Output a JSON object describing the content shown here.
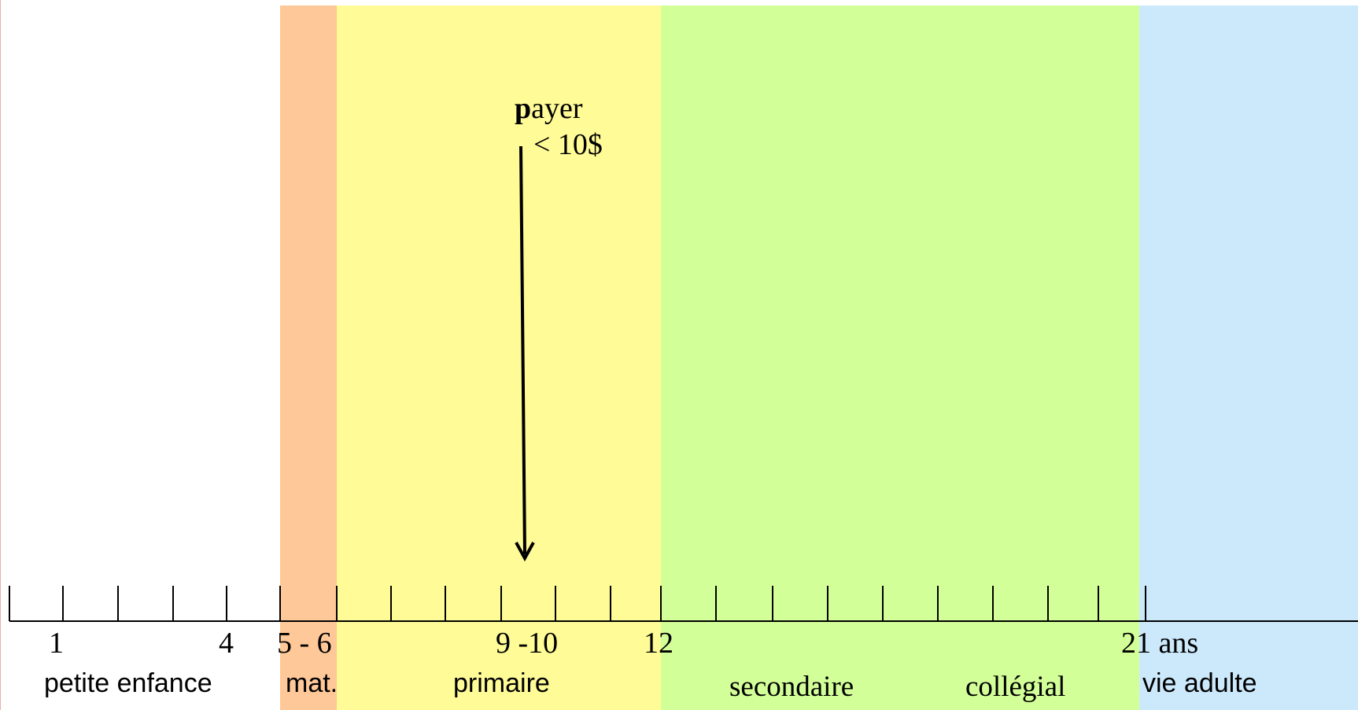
{
  "colors": {
    "band_mat": "#ffc898",
    "band_primaire": "#fffb96",
    "band_secondaire": "#d3ff98",
    "band_adulte": "#cce9fc",
    "axis": "#000000"
  },
  "tick_labels": [
    "1",
    "4",
    "5 - 6",
    "9 -10",
    "12",
    "21 ans"
  ],
  "stage_labels": [
    "petite enfance",
    "mat.",
    "primaire",
    "secondaire",
    "collégial",
    "vie adulte"
  ],
  "annotation": {
    "bold_letter": "p",
    "rest": "ayer",
    "amount": "< 10$"
  }
}
